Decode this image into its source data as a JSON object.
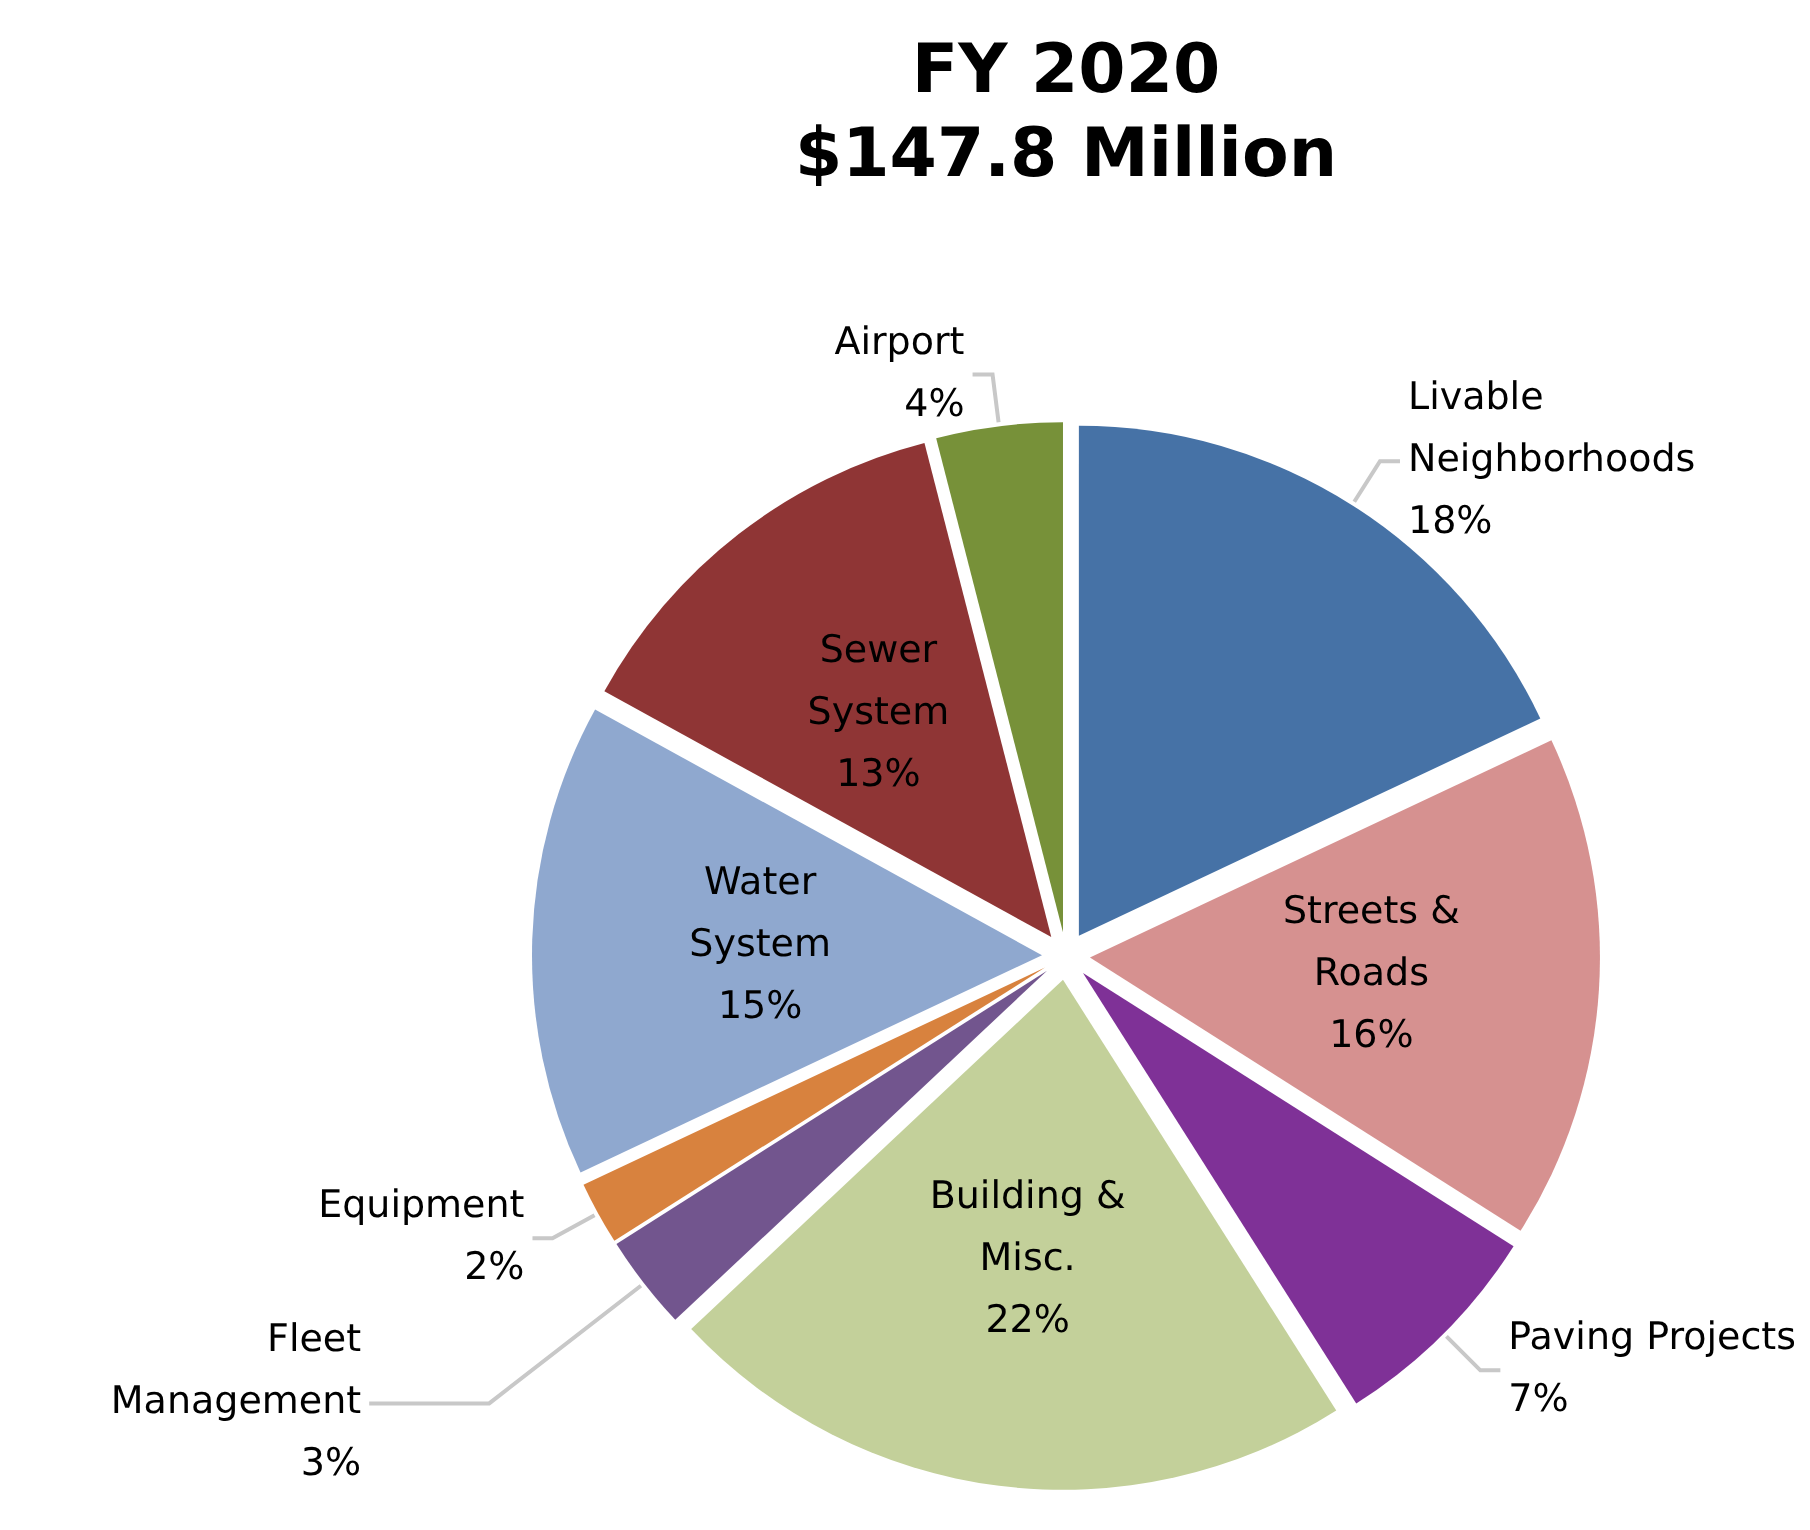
{
  "chart_data": {
    "type": "pie",
    "title": "FY 2020",
    "subtitle": "$147.8 Million",
    "categories": [
      "Livable Neighborhoods",
      "Streets & Roads",
      "Paving Projects",
      "Building & Misc.",
      "Fleet Management",
      "Equipment",
      "Water System",
      "Sewer System",
      "Airport"
    ],
    "values": [
      18,
      16,
      7,
      22,
      3,
      2,
      15,
      13,
      4
    ],
    "value_labels": [
      "18%",
      "16%",
      "7%",
      "22%",
      "3%",
      "2%",
      "15%",
      "13%",
      "4%"
    ],
    "colors": [
      "#4672a6",
      "#d69190",
      "#7f3197",
      "#c3d09a",
      "#72558e",
      "#d8823e",
      "#8fa8cf",
      "#8f3535",
      "#779139"
    ]
  }
}
